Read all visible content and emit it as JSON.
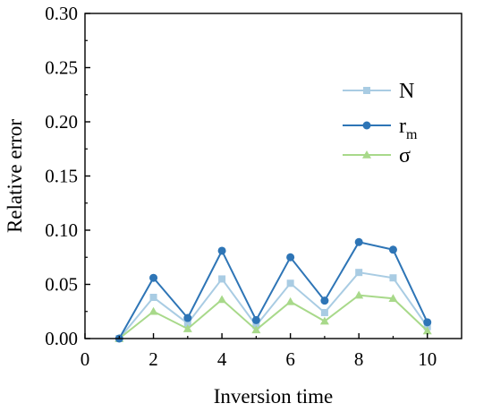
{
  "chart_data": {
    "type": "line",
    "xlabel": "Inversion time",
    "ylabel": "Relative error",
    "xlim": [
      0,
      11
    ],
    "ylim": [
      0,
      0.3
    ],
    "xticks": [
      "0",
      "2",
      "4",
      "6",
      "8",
      "10"
    ],
    "yticks": [
      "0.00",
      "0.05",
      "0.10",
      "0.15",
      "0.20",
      "0.25",
      "0.30"
    ],
    "grid": false,
    "legend_position": "upper-right",
    "x": [
      1,
      2,
      3,
      4,
      5,
      6,
      7,
      8,
      9,
      10
    ],
    "series": [
      {
        "name": "N",
        "marker": "square",
        "color": "#a9cce3",
        "values": [
          0.0,
          0.038,
          0.014,
          0.055,
          0.012,
          0.051,
          0.024,
          0.061,
          0.056,
          0.011
        ]
      },
      {
        "name": "rm",
        "name_main": "r",
        "name_sub": "m",
        "marker": "circle",
        "color": "#2e75b6",
        "values": [
          0.0,
          0.056,
          0.019,
          0.081,
          0.017,
          0.075,
          0.035,
          0.089,
          0.082,
          0.015
        ]
      },
      {
        "name": "σ",
        "marker": "triangle",
        "color": "#a8d98a",
        "values": [
          0.0,
          0.025,
          0.009,
          0.036,
          0.008,
          0.034,
          0.016,
          0.04,
          0.037,
          0.007
        ]
      }
    ]
  }
}
